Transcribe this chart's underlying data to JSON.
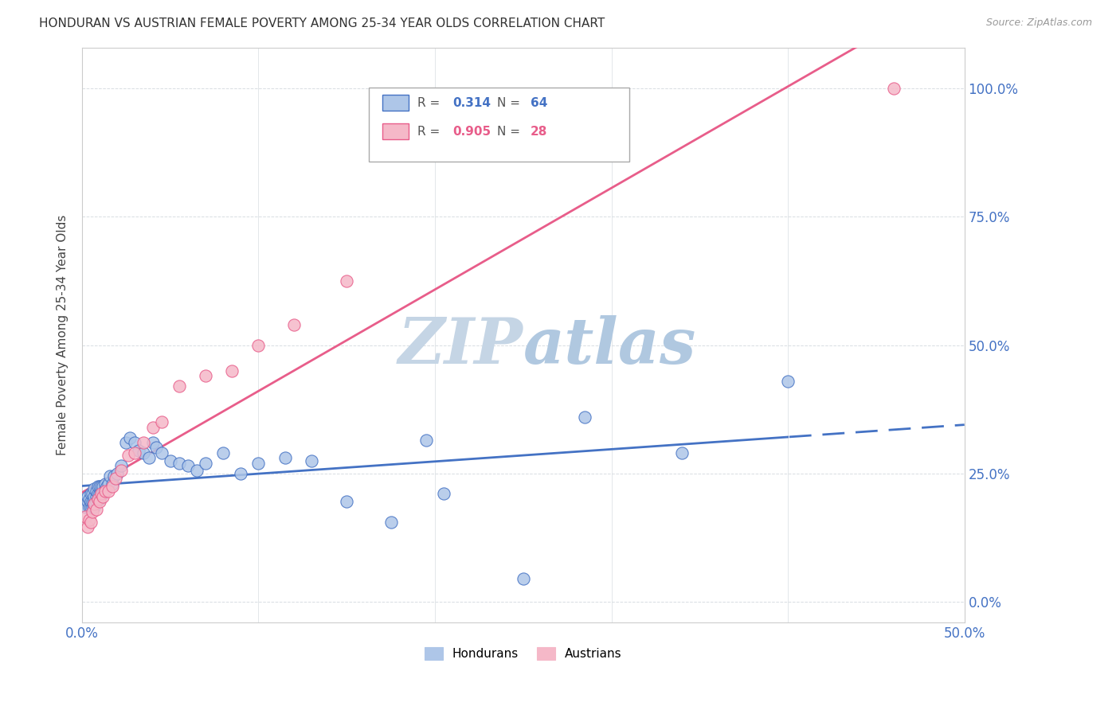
{
  "title": "HONDURAN VS AUSTRIAN FEMALE POVERTY AMONG 25-34 YEAR OLDS CORRELATION CHART",
  "source": "Source: ZipAtlas.com",
  "ylabel": "Female Poverty Among 25-34 Year Olds",
  "xlim": [
    0.0,
    0.5
  ],
  "ylim": [
    -0.04,
    1.08
  ],
  "yticks": [
    0.0,
    0.25,
    0.5,
    0.75,
    1.0
  ],
  "ytick_labels": [
    "0.0%",
    "25.0%",
    "50.0%",
    "75.0%",
    "100.0%"
  ],
  "xtick_labels_shown": [
    "0.0%",
    "50.0%"
  ],
  "xtick_positions_shown": [
    0.0,
    0.5
  ],
  "xtick_minor_positions": [
    0.0,
    0.1,
    0.2,
    0.3,
    0.4,
    0.5
  ],
  "honduran_color": "#aec6e8",
  "austrian_color": "#f5b8c8",
  "honduran_line_color": "#4472c4",
  "austrian_line_color": "#e85d8a",
  "legend_honduran_R": "0.314",
  "legend_honduran_N": "64",
  "legend_austrian_R": "0.905",
  "legend_austrian_N": "28",
  "honduran_x": [
    0.002,
    0.003,
    0.003,
    0.004,
    0.004,
    0.005,
    0.005,
    0.005,
    0.006,
    0.006,
    0.006,
    0.007,
    0.007,
    0.007,
    0.007,
    0.008,
    0.008,
    0.008,
    0.009,
    0.009,
    0.009,
    0.01,
    0.01,
    0.01,
    0.011,
    0.011,
    0.012,
    0.012,
    0.013,
    0.013,
    0.014,
    0.015,
    0.016,
    0.017,
    0.018,
    0.02,
    0.022,
    0.025,
    0.027,
    0.03,
    0.032,
    0.035,
    0.038,
    0.04,
    0.042,
    0.045,
    0.05,
    0.055,
    0.06,
    0.065,
    0.07,
    0.08,
    0.09,
    0.1,
    0.115,
    0.13,
    0.15,
    0.175,
    0.195,
    0.205,
    0.25,
    0.285,
    0.34,
    0.4
  ],
  "honduran_y": [
    0.185,
    0.195,
    0.205,
    0.185,
    0.2,
    0.185,
    0.195,
    0.21,
    0.185,
    0.195,
    0.21,
    0.185,
    0.195,
    0.205,
    0.22,
    0.195,
    0.205,
    0.215,
    0.2,
    0.21,
    0.225,
    0.2,
    0.21,
    0.225,
    0.215,
    0.225,
    0.21,
    0.225,
    0.22,
    0.23,
    0.225,
    0.23,
    0.245,
    0.23,
    0.245,
    0.25,
    0.265,
    0.31,
    0.32,
    0.31,
    0.295,
    0.29,
    0.28,
    0.31,
    0.3,
    0.29,
    0.275,
    0.27,
    0.265,
    0.255,
    0.27,
    0.29,
    0.25,
    0.27,
    0.28,
    0.275,
    0.195,
    0.155,
    0.315,
    0.21,
    0.045,
    0.36,
    0.29,
    0.43
  ],
  "austrian_x": [
    0.002,
    0.003,
    0.004,
    0.005,
    0.006,
    0.007,
    0.008,
    0.009,
    0.01,
    0.011,
    0.012,
    0.013,
    0.015,
    0.017,
    0.019,
    0.022,
    0.026,
    0.03,
    0.035,
    0.04,
    0.045,
    0.055,
    0.07,
    0.085,
    0.1,
    0.12,
    0.15,
    0.46
  ],
  "austrian_y": [
    0.165,
    0.145,
    0.16,
    0.155,
    0.175,
    0.19,
    0.18,
    0.2,
    0.195,
    0.21,
    0.205,
    0.215,
    0.215,
    0.225,
    0.24,
    0.255,
    0.285,
    0.29,
    0.31,
    0.34,
    0.35,
    0.42,
    0.44,
    0.45,
    0.5,
    0.54,
    0.625,
    1.0
  ],
  "background_color": "#ffffff",
  "watermark_zip": "ZIP",
  "watermark_atlas": "atlas",
  "watermark_color": "#c8d8e8",
  "grid_color": "#d8dde2",
  "tick_color": "#4472c4"
}
